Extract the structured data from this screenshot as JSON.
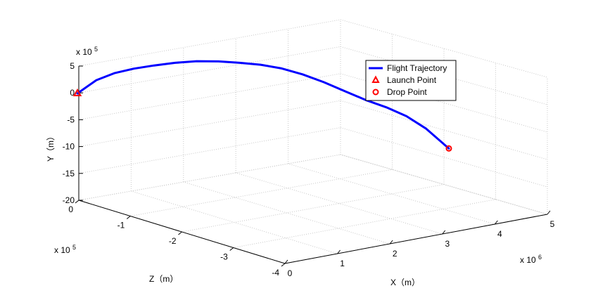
{
  "chart_data": {
    "type": "line",
    "dimensions": 3,
    "axes": {
      "x": {
        "label": "X（m）",
        "ticks": [
          0,
          1,
          2,
          3,
          4,
          5
        ],
        "multiplier": "x 10",
        "multiplier_exp": "6",
        "range": [
          0,
          5
        ]
      },
      "y": {
        "label": "Y（m）",
        "ticks": [
          -20,
          -15,
          -10,
          -5,
          0,
          5
        ],
        "multiplier": "x 10",
        "multiplier_exp": "5",
        "range": [
          -20,
          5
        ]
      },
      "z": {
        "label": "Z（m）",
        "ticks": [
          0,
          -1,
          -2,
          -3,
          -4
        ],
        "multiplier": "x 10",
        "multiplier_exp": "5",
        "range": [
          -4,
          0
        ]
      }
    },
    "grid": true,
    "legend": {
      "placement": "top-right",
      "entries": [
        {
          "label": "Flight Trajectory",
          "marker": "line",
          "color": "#0000ff"
        },
        {
          "label": "Launch Point",
          "marker": "triangle",
          "color": "#ff0000"
        },
        {
          "label": "Drop Point",
          "marker": "circle",
          "color": "#ff0000"
        }
      ]
    },
    "series": [
      {
        "name": "Flight Trajectory",
        "color": "#0000ff",
        "points_2d_norm": [
          [
            0.0,
            -0.1
          ],
          [
            0.051,
            2.37
          ],
          [
            0.101,
            3.7
          ],
          [
            0.152,
            4.52
          ],
          [
            0.206,
            5.1
          ],
          [
            0.263,
            5.6
          ],
          [
            0.321,
            5.9
          ],
          [
            0.38,
            5.87
          ],
          [
            0.437,
            5.6
          ],
          [
            0.493,
            5.25
          ],
          [
            0.55,
            4.55
          ],
          [
            0.606,
            3.46
          ],
          [
            0.663,
            2.0
          ],
          [
            0.721,
            0.29
          ],
          [
            0.778,
            -1.38
          ],
          [
            0.832,
            -2.7
          ],
          [
            0.886,
            -4.34
          ],
          [
            0.939,
            -6.68
          ],
          [
            1.0,
            -10.35
          ]
        ]
      }
    ],
    "launch_point": {
      "label": "Launch Point",
      "color": "#ff0000"
    },
    "drop_point": {
      "label": "Drop Point",
      "color": "#ff0000"
    }
  }
}
